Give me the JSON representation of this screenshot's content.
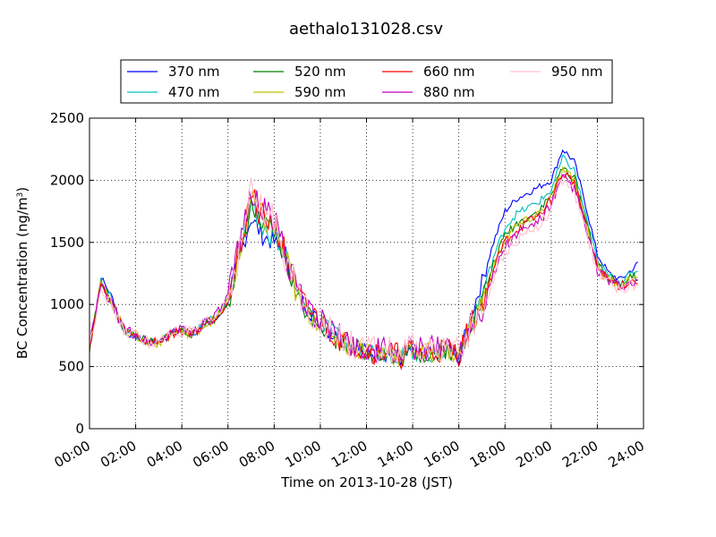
{
  "chart_data": {
    "type": "line",
    "title": "aethalo131028.csv",
    "xlabel": "Time on 2013-10-28 (JST)",
    "ylabel": "BC Concentration (ng/m",
    "ylabel_sup": "3",
    "ylabel_end": ")",
    "xlim": [
      "00:00",
      "24:00"
    ],
    "ylim": [
      0,
      2500
    ],
    "grid": true,
    "legend_position": "top",
    "x_ticks": [
      "00:00",
      "02:00",
      "04:00",
      "06:00",
      "08:00",
      "10:00",
      "12:00",
      "14:00",
      "16:00",
      "18:00",
      "20:00",
      "22:00",
      "24:00"
    ],
    "y_ticks": [
      "0",
      "500",
      "1000",
      "1500",
      "2000",
      "2500"
    ],
    "x_hours": [
      0,
      0.5,
      1,
      1.5,
      2,
      2.5,
      3,
      3.5,
      4,
      4.5,
      5,
      5.5,
      6,
      6.5,
      7,
      7.5,
      8,
      8.5,
      9,
      9.5,
      10,
      10.5,
      11,
      11.5,
      12,
      12.5,
      13,
      13.5,
      14,
      14.5,
      15,
      15.5,
      16,
      16.5,
      17,
      17.5,
      18,
      18.5,
      19,
      19.5,
      20,
      20.5,
      21,
      21.5,
      22,
      22.5,
      23,
      23.5,
      24
    ],
    "series": [
      {
        "name": "370 nm",
        "color": "#0000ff",
        "values": [
          620,
          1220,
          1050,
          780,
          740,
          690,
          700,
          760,
          800,
          760,
          860,
          880,
          1020,
          1380,
          1700,
          1550,
          1500,
          1400,
          1100,
          950,
          850,
          760,
          720,
          650,
          620,
          610,
          600,
          560,
          620,
          580,
          600,
          650,
          560,
          900,
          1180,
          1500,
          1750,
          1850,
          1900,
          1950,
          2000,
          2250,
          2150,
          1800,
          1400,
          1250,
          1200,
          1280,
          1380
        ]
      },
      {
        "name": "470 nm",
        "color": "#00bfbf",
        "values": [
          640,
          1190,
          1030,
          790,
          750,
          700,
          705,
          770,
          790,
          770,
          850,
          900,
          1040,
          1420,
          1760,
          1600,
          1550,
          1380,
          1080,
          940,
          860,
          770,
          710,
          660,
          630,
          620,
          610,
          570,
          630,
          590,
          600,
          640,
          580,
          860,
          1080,
          1380,
          1620,
          1730,
          1780,
          1830,
          1920,
          2180,
          2080,
          1720,
          1350,
          1230,
          1180,
          1250,
          1300
        ]
      },
      {
        "name": "520 nm",
        "color": "#008000",
        "values": [
          650,
          1180,
          1000,
          790,
          750,
          700,
          690,
          760,
          790,
          760,
          850,
          890,
          1020,
          1380,
          1800,
          1620,
          1580,
          1360,
          1050,
          930,
          850,
          740,
          690,
          650,
          620,
          600,
          610,
          570,
          620,
          600,
          610,
          640,
          580,
          840,
          1020,
          1330,
          1560,
          1650,
          1700,
          1760,
          1880,
          2100,
          2020,
          1690,
          1320,
          1210,
          1170,
          1220,
          1230
        ]
      },
      {
        "name": "590 nm",
        "color": "#bfbf00",
        "values": [
          650,
          1170,
          1000,
          800,
          750,
          690,
          690,
          760,
          780,
          760,
          840,
          890,
          1030,
          1400,
          1850,
          1680,
          1620,
          1380,
          1060,
          930,
          860,
          760,
          700,
          650,
          630,
          610,
          610,
          580,
          640,
          600,
          620,
          640,
          590,
          830,
          1000,
          1300,
          1530,
          1630,
          1680,
          1740,
          1860,
          2080,
          2000,
          1670,
          1310,
          1200,
          1160,
          1210,
          1200
        ]
      },
      {
        "name": "660 nm",
        "color": "#ff0000",
        "values": [
          660,
          1160,
          1000,
          800,
          760,
          690,
          700,
          760,
          790,
          770,
          850,
          900,
          1040,
          1420,
          1900,
          1700,
          1660,
          1400,
          1080,
          950,
          870,
          770,
          700,
          660,
          630,
          610,
          620,
          580,
          640,
          600,
          620,
          650,
          600,
          830,
          990,
          1280,
          1510,
          1600,
          1660,
          1720,
          1840,
          2060,
          1980,
          1650,
          1300,
          1190,
          1150,
          1190,
          1180
        ]
      },
      {
        "name": "880 nm",
        "color": "#bf00bf",
        "values": [
          670,
          1150,
          990,
          800,
          760,
          700,
          700,
          770,
          800,
          780,
          860,
          910,
          1060,
          1450,
          1950,
          1750,
          1700,
          1420,
          1100,
          960,
          880,
          780,
          720,
          670,
          640,
          630,
          640,
          600,
          660,
          620,
          650,
          670,
          620,
          830,
          970,
          1240,
          1470,
          1560,
          1620,
          1680,
          1800,
          2020,
          1940,
          1620,
          1280,
          1180,
          1140,
          1170,
          1150
        ]
      },
      {
        "name": "950 nm",
        "color": "#ffc0cb",
        "values": [
          660,
          1140,
          980,
          790,
          760,
          700,
          690,
          760,
          790,
          770,
          850,
          900,
          1050,
          1430,
          1920,
          1720,
          1680,
          1400,
          1090,
          950,
          870,
          770,
          710,
          660,
          630,
          620,
          630,
          590,
          650,
          610,
          640,
          660,
          610,
          800,
          940,
          1200,
          1430,
          1520,
          1590,
          1650,
          1770,
          1990,
          1910,
          1600,
          1270,
          1170,
          1130,
          1160,
          1140
        ]
      }
    ]
  }
}
